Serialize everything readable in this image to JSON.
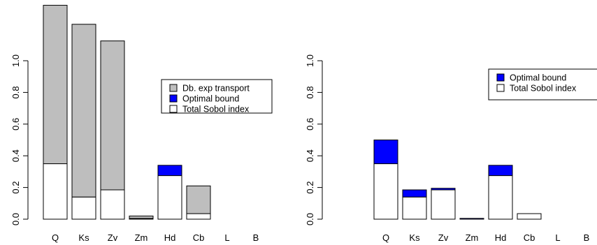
{
  "colors": {
    "total_sobol": "#ffffff",
    "optimal_bound": "#0000ff",
    "db_exp_transport": "#bebebe",
    "stroke": "#000000"
  },
  "chart_data": [
    {
      "type": "bar",
      "stacked": true,
      "categories": [
        "Q",
        "Ks",
        "Zv",
        "Zm",
        "Hd",
        "Cb",
        "L",
        "B"
      ],
      "series": [
        {
          "name": "Total Sobol index",
          "values": [
            0.35,
            0.14,
            0.185,
            0.005,
            0.275,
            0.035,
            0.0,
            0.0
          ]
        },
        {
          "name": "Optimal bound",
          "values": [
            0.0,
            0.0,
            0.0,
            0.0,
            0.065,
            0.0,
            0.0,
            0.0
          ]
        },
        {
          "name": "Db. exp transport",
          "values": [
            1.0,
            1.09,
            0.94,
            0.015,
            0.0,
            0.175,
            0.0,
            0.0
          ]
        }
      ],
      "y_ticks": [
        "0.0",
        "0.2",
        "0.4",
        "0.6",
        "0.8",
        "1.0"
      ],
      "ylim": [
        0,
        1.35
      ],
      "legend": {
        "position": "right",
        "entries": [
          "Db. exp transport",
          "Optimal bound",
          "Total Sobol index"
        ]
      }
    },
    {
      "type": "bar",
      "stacked": true,
      "categories": [
        "Q",
        "Ks",
        "Zv",
        "Zm",
        "Hd",
        "Cb",
        "L",
        "B"
      ],
      "series": [
        {
          "name": "Total Sobol index",
          "values": [
            0.35,
            0.14,
            0.185,
            0.0,
            0.275,
            0.035,
            0.0,
            0.0
          ]
        },
        {
          "name": "Optimal bound",
          "values": [
            0.15,
            0.045,
            0.01,
            0.005,
            0.065,
            0.0,
            0.0,
            0.0
          ]
        }
      ],
      "y_ticks": [
        "0.0",
        "0.2",
        "0.4",
        "0.6",
        "0.8",
        "1.0"
      ],
      "ylim": [
        0,
        1.35
      ],
      "legend": {
        "position": "top-right",
        "entries": [
          "Optimal bound",
          "Total Sobol index"
        ]
      }
    }
  ]
}
